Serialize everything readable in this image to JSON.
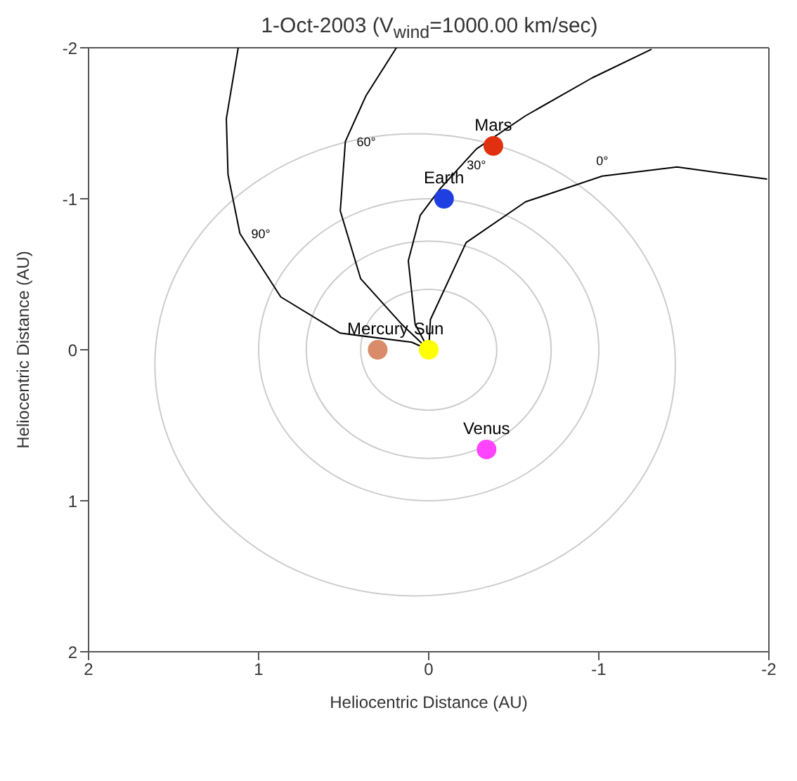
{
  "chart_data": {
    "type": "scatter",
    "title": "1-Oct-2003 (V$_{wind}$=1000.00 km/sec)",
    "xlabel": "Heliocentric Distance (AU)",
    "ylabel": "Heliocentric Distance (AU)",
    "xlim": [
      2,
      -2
    ],
    "xticks": [
      2,
      1,
      0,
      -1,
      -2
    ],
    "ylim": [
      2,
      -2
    ],
    "yticks": [
      -2,
      -1,
      0,
      1,
      2
    ],
    "legend": false,
    "series": [
      {
        "type": "line",
        "marker": "none",
        "color": "#000000",
        "x": [
          0,
          -0.01,
          -0.22,
          -0.57,
          -1.02,
          -1.46,
          -1.99
        ],
        "values": [
          0,
          -0.2,
          -0.71,
          -0.98,
          -1.15,
          -1.21,
          -1.13
        ]
      },
      {
        "type": "line",
        "marker": "none",
        "color": "#000000",
        "x": [
          0,
          0.08,
          0.12,
          0.05,
          -0.07,
          -0.28,
          -0.57,
          -0.96,
          -1.31
        ],
        "values": [
          0,
          -0.17,
          -0.59,
          -0.89,
          -1.07,
          -1.33,
          -1.55,
          -1.8,
          -1.99
        ]
      },
      {
        "type": "line",
        "marker": "none",
        "color": "#000000",
        "x": [
          0,
          0.16,
          0.4,
          0.52,
          0.49,
          0.37,
          0.19
        ],
        "values": [
          0,
          -0.17,
          -0.47,
          -0.92,
          -1.38,
          -1.68,
          -2.0
        ]
      },
      {
        "type": "line",
        "marker": "none",
        "color": "#000000",
        "x": [
          0,
          0.1,
          0.52,
          0.87,
          1.11,
          1.18,
          1.19,
          1.12
        ],
        "values": [
          0,
          -0.05,
          -0.11,
          -0.35,
          -0.77,
          -1.16,
          -1.53,
          -2.0
        ]
      },
      {
        "name": "Sun",
        "marker": "circle",
        "color": "#ffff00",
        "x": [
          0
        ],
        "values": [
          0
        ]
      },
      {
        "name": "Mercury",
        "marker": "circle",
        "color": "#d98b6a",
        "x": [
          0.3
        ],
        "values": [
          0
        ]
      },
      {
        "name": "Venus",
        "marker": "circle",
        "color": "#ff44ff",
        "x": [
          -0.34
        ],
        "values": [
          0.66
        ]
      },
      {
        "name": "Earth",
        "marker": "circle",
        "color": "#1f3fe0",
        "x": [
          -0.09
        ],
        "values": [
          -1.0
        ]
      },
      {
        "name": "Mars",
        "marker": "circle",
        "color": "#e03010",
        "x": [
          -0.38
        ],
        "values": [
          -1.35
        ]
      }
    ],
    "annotations": [
      {
        "text": "0°",
        "x": -1.02,
        "y": -1.15
      },
      {
        "text": "30°",
        "x": -0.28,
        "y": -1.33
      },
      {
        "text": "60°",
        "x": 0.49,
        "y": -1.38
      },
      {
        "text": "90°",
        "x": 1.11,
        "y": -0.77
      }
    ]
  }
}
